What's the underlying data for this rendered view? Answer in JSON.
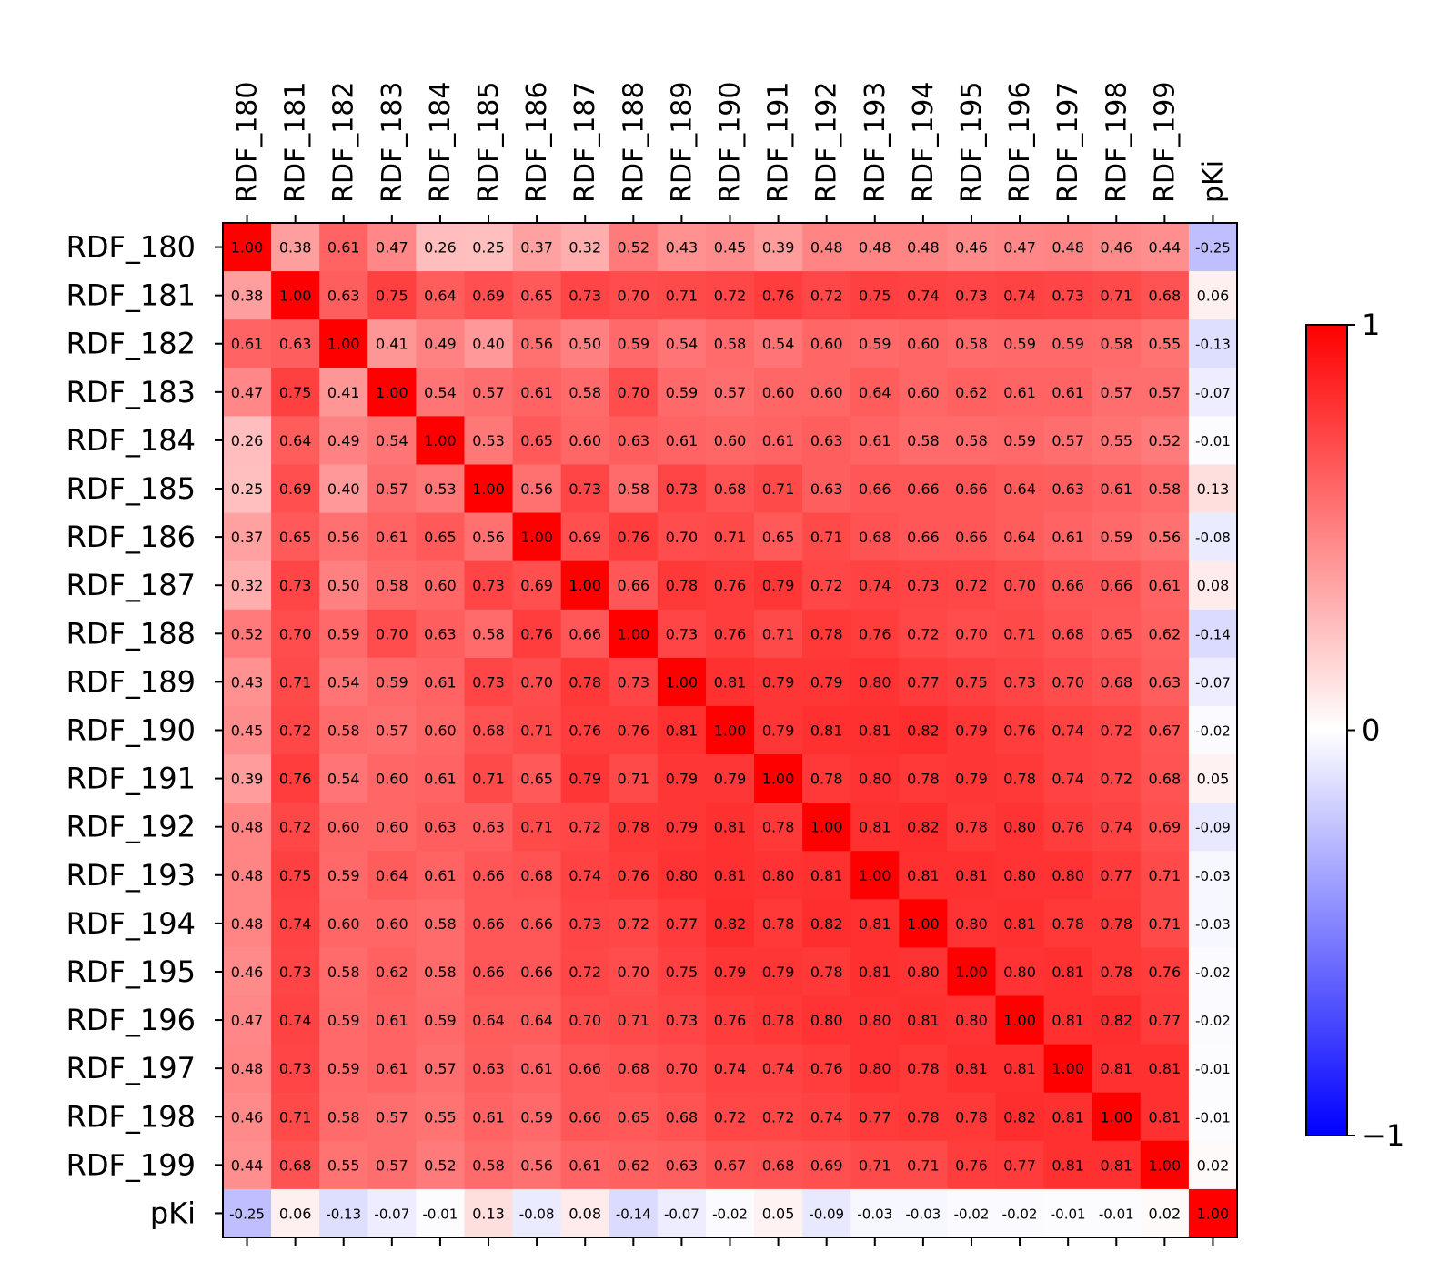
{
  "chart_data": {
    "type": "heatmap",
    "title": "",
    "xlabel": "",
    "ylabel": "",
    "labels": [
      "RDF_180",
      "RDF_181",
      "RDF_182",
      "RDF_183",
      "RDF_184",
      "RDF_185",
      "RDF_186",
      "RDF_187",
      "RDF_188",
      "RDF_189",
      "RDF_190",
      "RDF_191",
      "RDF_192",
      "RDF_193",
      "RDF_194",
      "RDF_195",
      "RDF_196",
      "RDF_197",
      "RDF_198",
      "RDF_199",
      "pKi"
    ],
    "cell_labels": [
      [
        "1.00",
        "0.38",
        "0.61",
        "0.47",
        "0.26",
        "0.25",
        "0.37",
        "0.32",
        "0.52",
        "0.43",
        "0.45",
        "0.39",
        "0.48",
        "0.48",
        "0.48",
        "0.46",
        "0.47",
        "0.48",
        "0.46",
        "0.44",
        "-0.25"
      ],
      [
        "0.38",
        "1.00",
        "0.63",
        "0.75",
        "0.64",
        "0.69",
        "0.65",
        "0.73",
        "0.70",
        "0.71",
        "0.72",
        "0.76",
        "0.72",
        "0.75",
        "0.74",
        "0.73",
        "0.74",
        "0.73",
        "0.71",
        "0.68",
        "0.06"
      ],
      [
        "0.61",
        "0.63",
        "1.00",
        "0.41",
        "0.49",
        "0.40",
        "0.56",
        "0.50",
        "0.59",
        "0.54",
        "0.58",
        "0.54",
        "0.60",
        "0.59",
        "0.60",
        "0.58",
        "0.59",
        "0.59",
        "0.58",
        "0.55",
        "-0.13"
      ],
      [
        "0.47",
        "0.75",
        "0.41",
        "1.00",
        "0.54",
        "0.57",
        "0.61",
        "0.58",
        "0.70",
        "0.59",
        "0.57",
        "0.60",
        "0.60",
        "0.64",
        "0.60",
        "0.62",
        "0.61",
        "0.61",
        "0.57",
        "0.57",
        "-0.07"
      ],
      [
        "0.26",
        "0.64",
        "0.49",
        "0.54",
        "1.00",
        "0.53",
        "0.65",
        "0.60",
        "0.63",
        "0.61",
        "0.60",
        "0.61",
        "0.63",
        "0.61",
        "0.58",
        "0.58",
        "0.59",
        "0.57",
        "0.55",
        "0.52",
        "-0.01"
      ],
      [
        "0.25",
        "0.69",
        "0.40",
        "0.57",
        "0.53",
        "1.00",
        "0.56",
        "0.73",
        "0.58",
        "0.73",
        "0.68",
        "0.71",
        "0.63",
        "0.66",
        "0.66",
        "0.66",
        "0.64",
        "0.63",
        "0.61",
        "0.58",
        "0.13"
      ],
      [
        "0.37",
        "0.65",
        "0.56",
        "0.61",
        "0.65",
        "0.56",
        "1.00",
        "0.69",
        "0.76",
        "0.70",
        "0.71",
        "0.65",
        "0.71",
        "0.68",
        "0.66",
        "0.66",
        "0.64",
        "0.61",
        "0.59",
        "0.56",
        "-0.08"
      ],
      [
        "0.32",
        "0.73",
        "0.50",
        "0.58",
        "0.60",
        "0.73",
        "0.69",
        "1.00",
        "0.66",
        "0.78",
        "0.76",
        "0.79",
        "0.72",
        "0.74",
        "0.73",
        "0.72",
        "0.70",
        "0.66",
        "0.66",
        "0.61",
        "0.08"
      ],
      [
        "0.52",
        "0.70",
        "0.59",
        "0.70",
        "0.63",
        "0.58",
        "0.76",
        "0.66",
        "1.00",
        "0.73",
        "0.76",
        "0.71",
        "0.78",
        "0.76",
        "0.72",
        "0.70",
        "0.71",
        "0.68",
        "0.65",
        "0.62",
        "-0.14"
      ],
      [
        "0.43",
        "0.71",
        "0.54",
        "0.59",
        "0.61",
        "0.73",
        "0.70",
        "0.78",
        "0.73",
        "1.00",
        "0.81",
        "0.79",
        "0.79",
        "0.80",
        "0.77",
        "0.75",
        "0.73",
        "0.70",
        "0.68",
        "0.63",
        "-0.07"
      ],
      [
        "0.45",
        "0.72",
        "0.58",
        "0.57",
        "0.60",
        "0.68",
        "0.71",
        "0.76",
        "0.76",
        "0.81",
        "1.00",
        "0.79",
        "0.81",
        "0.81",
        "0.82",
        "0.79",
        "0.76",
        "0.74",
        "0.72",
        "0.67",
        "-0.02"
      ],
      [
        "0.39",
        "0.76",
        "0.54",
        "0.60",
        "0.61",
        "0.71",
        "0.65",
        "0.79",
        "0.71",
        "0.79",
        "0.79",
        "1.00",
        "0.78",
        "0.80",
        "0.78",
        "0.79",
        "0.78",
        "0.74",
        "0.72",
        "0.68",
        "0.05"
      ],
      [
        "0.48",
        "0.72",
        "0.60",
        "0.60",
        "0.63",
        "0.63",
        "0.71",
        "0.72",
        "0.78",
        "0.79",
        "0.81",
        "0.78",
        "1.00",
        "0.81",
        "0.82",
        "0.78",
        "0.80",
        "0.76",
        "0.74",
        "0.69",
        "-0.09"
      ],
      [
        "0.48",
        "0.75",
        "0.59",
        "0.64",
        "0.61",
        "0.66",
        "0.68",
        "0.74",
        "0.76",
        "0.80",
        "0.81",
        "0.80",
        "0.81",
        "1.00",
        "0.81",
        "0.81",
        "0.80",
        "0.80",
        "0.77",
        "0.71",
        "-0.03"
      ],
      [
        "0.48",
        "0.74",
        "0.60",
        "0.60",
        "0.58",
        "0.66",
        "0.66",
        "0.73",
        "0.72",
        "0.77",
        "0.82",
        "0.78",
        "0.82",
        "0.81",
        "1.00",
        "0.80",
        "0.81",
        "0.78",
        "0.78",
        "0.71",
        "-0.03"
      ],
      [
        "0.46",
        "0.73",
        "0.58",
        "0.62",
        "0.58",
        "0.66",
        "0.66",
        "0.72",
        "0.70",
        "0.75",
        "0.79",
        "0.79",
        "0.78",
        "0.81",
        "0.80",
        "1.00",
        "0.80",
        "0.81",
        "0.78",
        "0.76",
        "-0.02"
      ],
      [
        "0.47",
        "0.74",
        "0.59",
        "0.61",
        "0.59",
        "0.64",
        "0.64",
        "0.70",
        "0.71",
        "0.73",
        "0.76",
        "0.78",
        "0.80",
        "0.80",
        "0.81",
        "0.80",
        "1.00",
        "0.81",
        "0.82",
        "0.77",
        "-0.02"
      ],
      [
        "0.48",
        "0.73",
        "0.59",
        "0.61",
        "0.57",
        "0.63",
        "0.61",
        "0.66",
        "0.68",
        "0.70",
        "0.74",
        "0.74",
        "0.76",
        "0.80",
        "0.78",
        "0.81",
        "0.81",
        "1.00",
        "0.81",
        "0.81",
        "-0.01"
      ],
      [
        "0.46",
        "0.71",
        "0.58",
        "0.57",
        "0.55",
        "0.61",
        "0.59",
        "0.66",
        "0.65",
        "0.68",
        "0.72",
        "0.72",
        "0.74",
        "0.77",
        "0.78",
        "0.78",
        "0.82",
        "0.81",
        "1.00",
        "0.81",
        "-0.01"
      ],
      [
        "0.44",
        "0.68",
        "0.55",
        "0.57",
        "0.52",
        "0.58",
        "0.56",
        "0.61",
        "0.62",
        "0.63",
        "0.67",
        "0.68",
        "0.69",
        "0.71",
        "0.71",
        "0.76",
        "0.77",
        "0.81",
        "0.81",
        "1.00",
        "0.02"
      ],
      [
        "-0.25",
        "0.06",
        "-0.13",
        "-0.07",
        "-0.01",
        "0.13",
        "-0.08",
        "0.08",
        "-0.14",
        "-0.07",
        "-0.02",
        "0.05",
        "-0.09",
        "-0.03",
        "-0.03",
        "-0.02",
        "-0.02",
        "-0.01",
        "-0.01",
        "0.02",
        "1.00"
      ]
    ],
    "vmin": -1,
    "vmax": 1,
    "colormap": "bwr",
    "colorbar_ticks": [
      {
        "value": 1,
        "label": "1"
      },
      {
        "value": 0,
        "label": "0"
      },
      {
        "value": -1,
        "label": "−1"
      }
    ],
    "legend_position": "right",
    "grid": false
  }
}
